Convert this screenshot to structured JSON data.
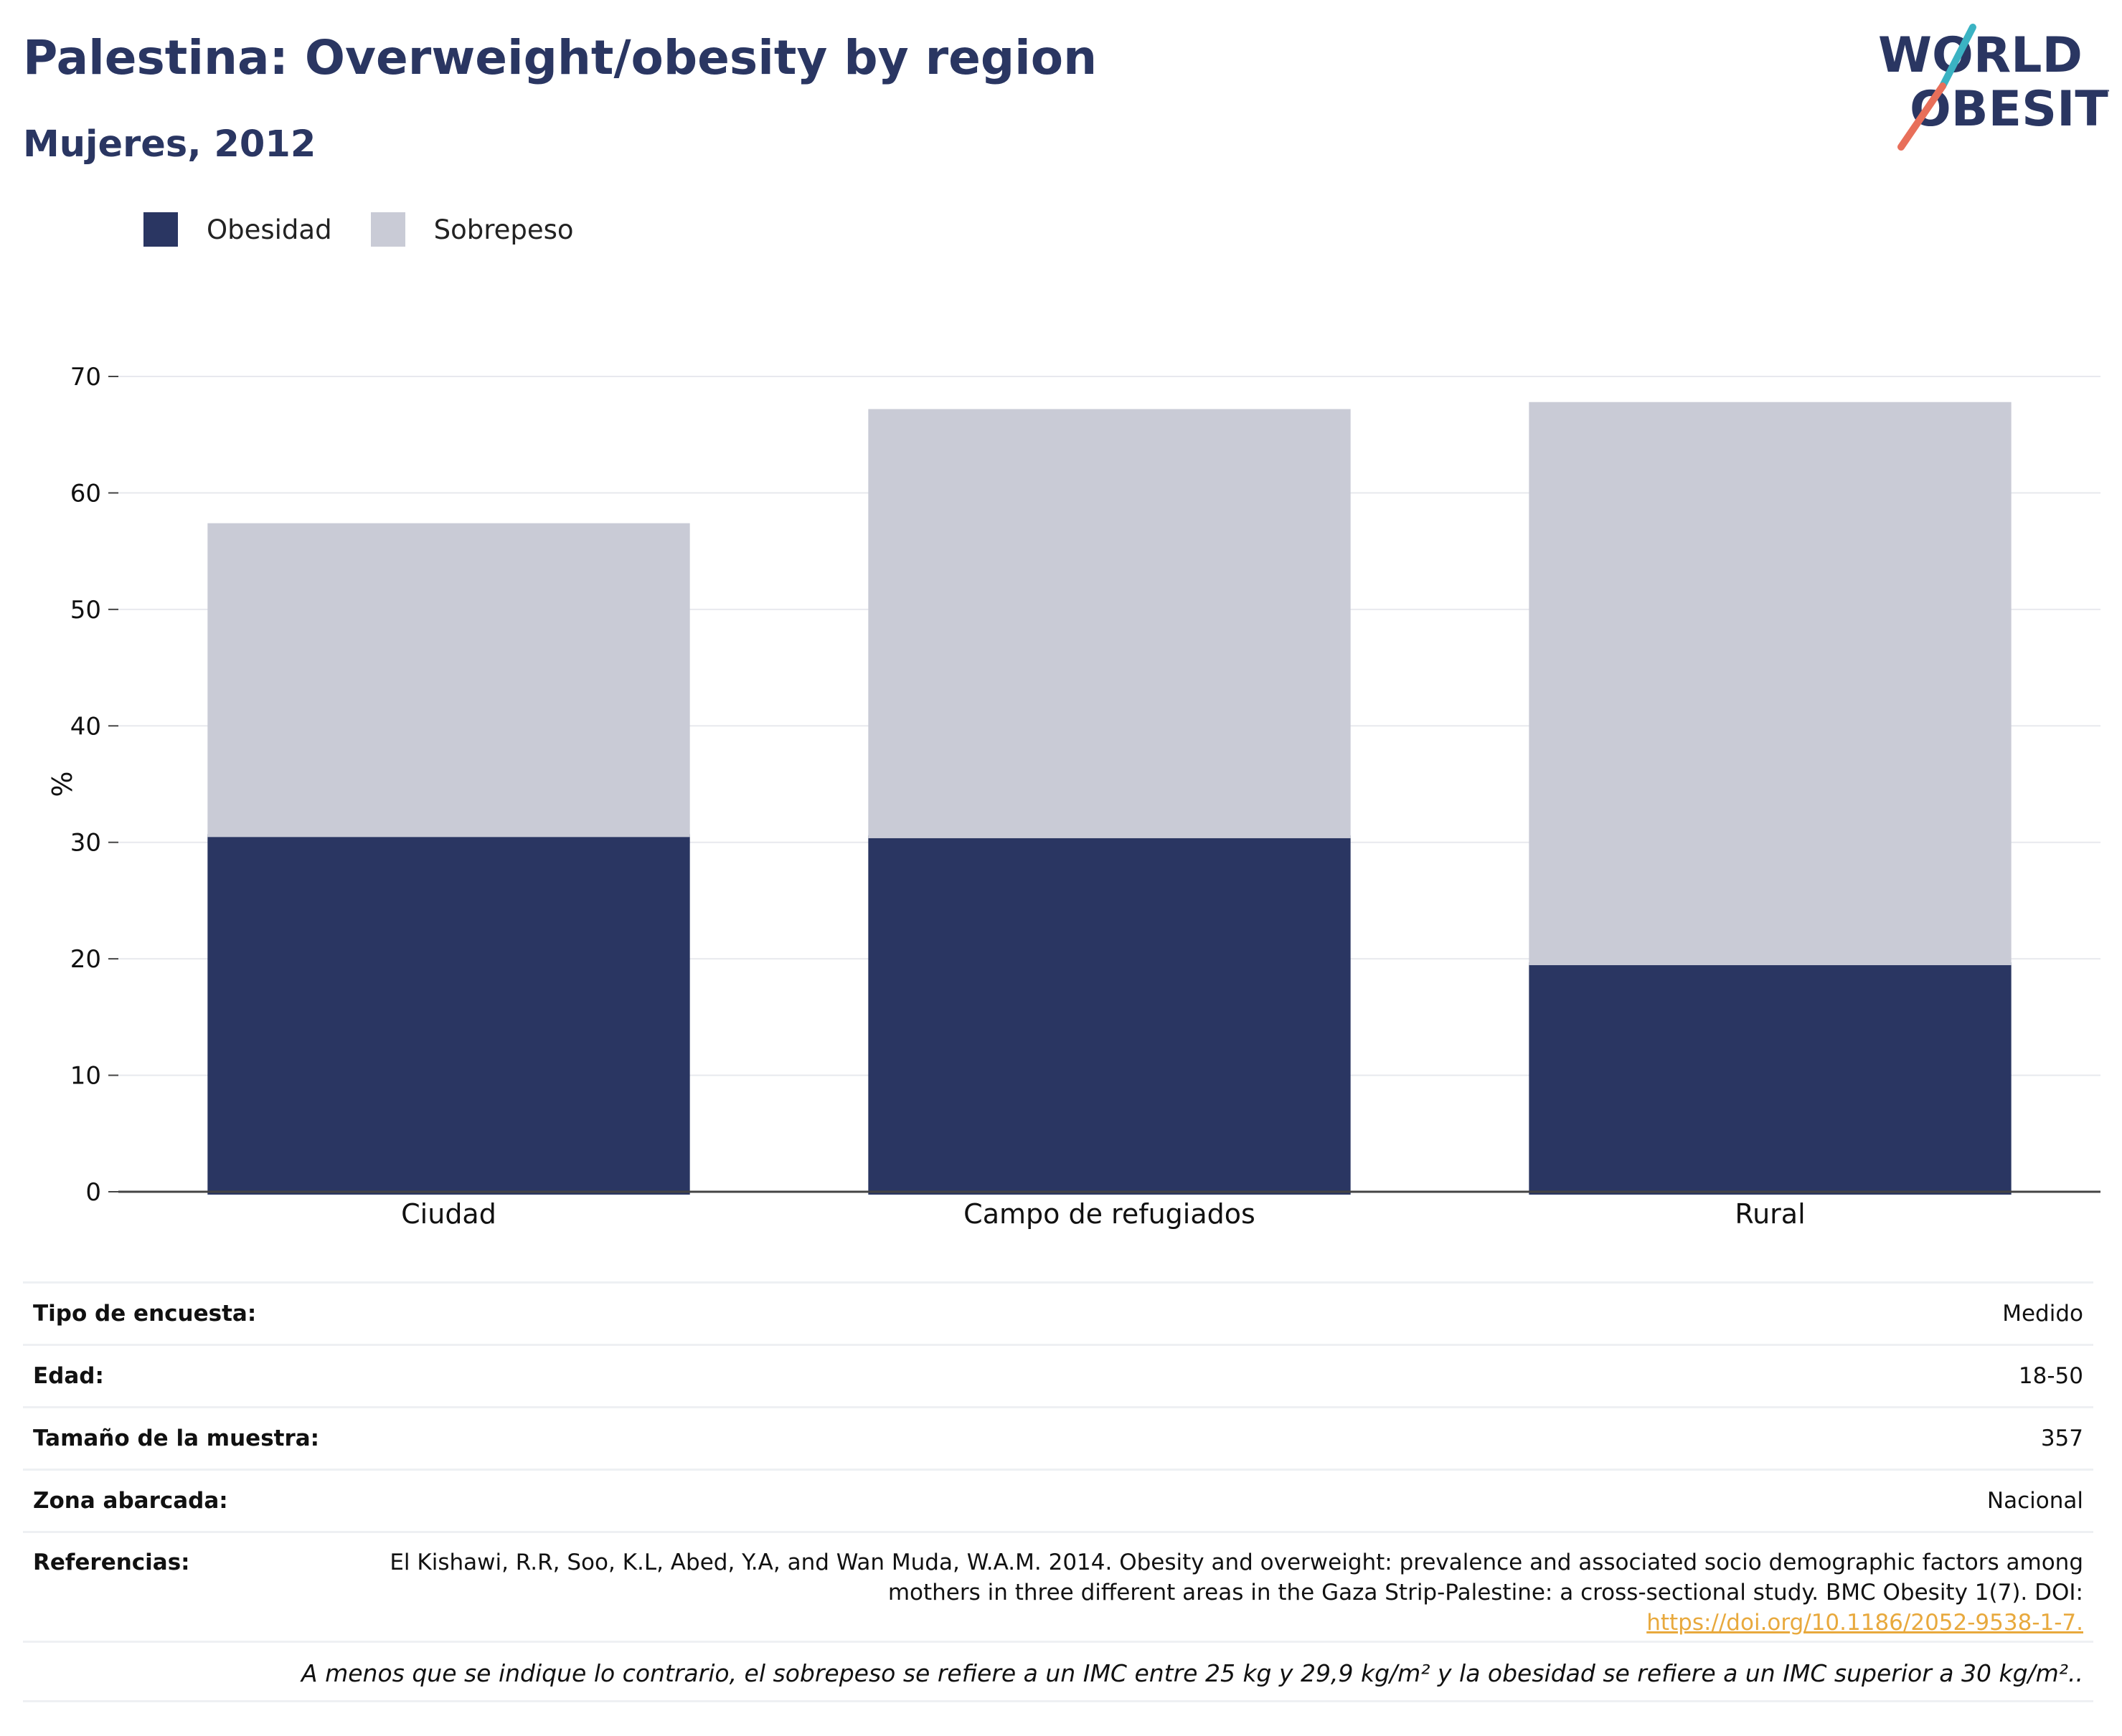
{
  "header": {
    "title": "Palestina: Overweight/obesity by region",
    "subtitle": "Mujeres, 2012"
  },
  "logo": {
    "line1": "WORLD",
    "line2": "OBESITY",
    "colors": {
      "text": "#2a3662",
      "slash_teal": "#3bb3c3",
      "slash_coral": "#e86f5a"
    }
  },
  "legend": [
    {
      "label": "Obesidad",
      "color": "#2a3662"
    },
    {
      "label": "Sobrepeso",
      "color": "#c9cbd6"
    }
  ],
  "chart_data": {
    "type": "bar",
    "stacked": true,
    "categories": [
      "Ciudad",
      "Campo de refugiados",
      "Rural"
    ],
    "series": [
      {
        "name": "Obesidad",
        "color": "#2a3662",
        "values": [
          30.7,
          30.6,
          19.7
        ]
      },
      {
        "name": "Sobrepeso",
        "color": "#c9cbd6",
        "values": [
          26.7,
          36.6,
          48.1
        ]
      }
    ],
    "ylabel": "%",
    "ylim": [
      0,
      70
    ],
    "yticks": [
      0,
      10,
      20,
      30,
      40,
      50,
      60,
      70
    ],
    "grid": true,
    "legend_position": "top-left"
  },
  "info": {
    "survey_type": {
      "label": "Tipo de encuesta:",
      "value": "Medido"
    },
    "age": {
      "label": "Edad:",
      "value": "18-50"
    },
    "sample_size": {
      "label": "Tamaño de la muestra:",
      "value": "357"
    },
    "area": {
      "label": "Zona abarcada:",
      "value": "Nacional"
    },
    "references": {
      "label": "Referencias:",
      "text": "El Kishawi, R.R, Soo, K.L, Abed, Y.A, and Wan Muda, W.A.M. 2014. Obesity and overweight: prevalence and associated socio demographic factors among mothers in three different areas in the Gaza Strip-Palestine: a cross-sectional study. BMC Obesity 1(7). DOI:",
      "doi": "https://doi.org/10.1186/2052-9538-1-7."
    }
  },
  "footnote": "A menos que se indique lo contrario, el sobrepeso se refiere a un IMC entre 25 kg y 29,9 kg/m² y la obesidad se refiere a un IMC superior a 30 kg/m²..",
  "colors": {
    "accent": "#2a3662",
    "grid": "#e8e9ee",
    "doi_link": "#e8a93d"
  }
}
